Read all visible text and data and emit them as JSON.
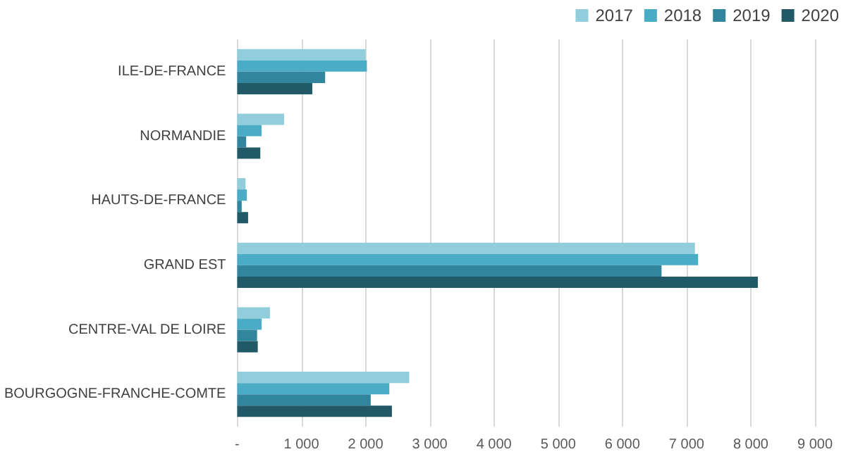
{
  "chart_data": {
    "type": "bar",
    "orientation": "horizontal",
    "categories": [
      "ILE-DE-FRANCE",
      "NORMANDIE",
      "HAUTS-DE-FRANCE",
      "GRAND EST",
      "CENTRE-VAL DE LOIRE",
      "BOURGOGNE-FRANCHE-COMTE"
    ],
    "series": [
      {
        "name": "2017",
        "color": "#92cddc",
        "values": [
          2000,
          730,
          130,
          7130,
          510,
          2680
        ]
      },
      {
        "name": "2018",
        "color": "#4bacc6",
        "values": [
          2020,
          380,
          150,
          7180,
          380,
          2370
        ]
      },
      {
        "name": "2019",
        "color": "#31859c",
        "values": [
          1370,
          140,
          70,
          6610,
          310,
          2080
        ]
      },
      {
        "name": "2020",
        "color": "#215967",
        "values": [
          1170,
          360,
          170,
          8110,
          320,
          2410
        ]
      }
    ],
    "xlim": [
      0,
      9000
    ],
    "xticks": [
      {
        "value": 0,
        "label": "-"
      },
      {
        "value": 1000,
        "label": "1 000"
      },
      {
        "value": 2000,
        "label": "2 000"
      },
      {
        "value": 3000,
        "label": "3 000"
      },
      {
        "value": 4000,
        "label": "4 000"
      },
      {
        "value": 5000,
        "label": "5 000"
      },
      {
        "value": 6000,
        "label": "6 000"
      },
      {
        "value": 7000,
        "label": "7 000"
      },
      {
        "value": 8000,
        "label": "8 000"
      },
      {
        "value": 9000,
        "label": "9 000"
      }
    ],
    "grid": "x",
    "legend": "top right"
  }
}
